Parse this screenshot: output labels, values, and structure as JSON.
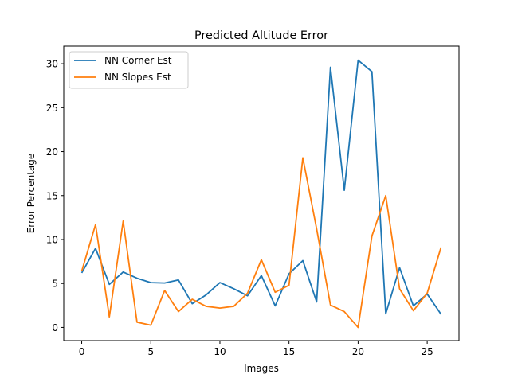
{
  "chart_data": {
    "type": "line",
    "title": "Predicted Altitude Error",
    "xlabel": "Images",
    "ylabel": "Error Percentage",
    "xlim": [
      -1.3,
      27.3
    ],
    "ylim": [
      -1.5,
      32.0
    ],
    "x_ticks": [
      0,
      5,
      10,
      15,
      20,
      25
    ],
    "y_ticks": [
      0,
      5,
      10,
      15,
      20,
      25,
      30
    ],
    "grid": false,
    "legend_position": "upper left",
    "x": [
      0,
      1,
      2,
      3,
      4,
      5,
      6,
      7,
      8,
      9,
      10,
      11,
      12,
      13,
      14,
      15,
      16,
      17,
      18,
      19,
      20,
      21,
      22,
      23,
      24,
      25,
      26
    ],
    "series": [
      {
        "name": "NN Corner Est",
        "color": "#1f77b4",
        "values": [
          6.2,
          9.0,
          4.9,
          6.3,
          5.6,
          5.1,
          5.05,
          5.4,
          2.7,
          3.7,
          5.1,
          4.4,
          3.6,
          5.9,
          2.45,
          6.1,
          7.6,
          2.9,
          29.6,
          15.6,
          30.4,
          29.1,
          1.55,
          6.8,
          2.45,
          3.8,
          1.5
        ]
      },
      {
        "name": "NN Slopes Est",
        "color": "#ff7f0e",
        "values": [
          6.4,
          11.7,
          1.2,
          12.1,
          0.6,
          0.25,
          4.2,
          1.8,
          3.2,
          2.4,
          2.2,
          2.4,
          3.9,
          7.7,
          4.0,
          4.8,
          19.3,
          11.2,
          2.55,
          1.8,
          0.0,
          10.4,
          15.0,
          4.4,
          1.9,
          3.9,
          9.1
        ]
      }
    ]
  }
}
